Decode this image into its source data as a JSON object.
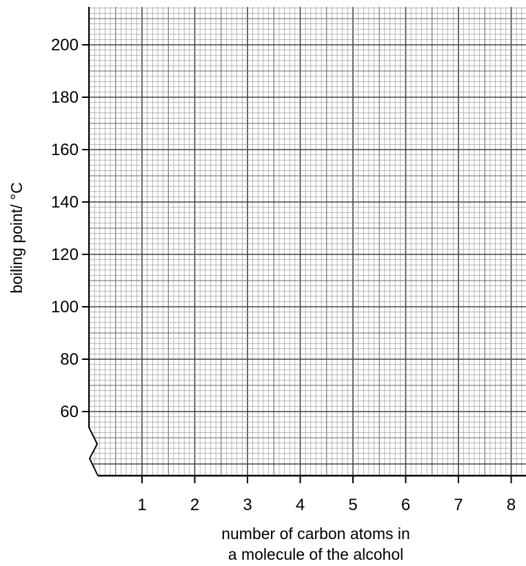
{
  "chart_data": {
    "type": "line",
    "title": "",
    "xlabel_lines": [
      "number of carbon atoms in",
      "a molecule of the alcohol"
    ],
    "ylabel": "boiling point/ °C",
    "x_ticks": [
      1,
      2,
      3,
      4,
      5,
      6,
      7,
      8
    ],
    "y_ticks": [
      60,
      80,
      100,
      120,
      140,
      160,
      180,
      200
    ],
    "xlim": [
      0,
      8.3
    ],
    "ylim": [
      40,
      215
    ],
    "y_axis_break": true,
    "grid": "graph-paper (major every 1 carbon / 20 °C, minor subdivisions)",
    "series": []
  },
  "colors": {
    "ink": "#000000",
    "paper": "#ffffff",
    "grid_minor": "#8a8a8a",
    "grid_major": "#444444"
  }
}
